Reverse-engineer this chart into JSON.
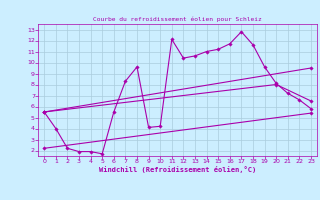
{
  "title": "Courbe du refroidissement éolien pour Schleiz",
  "xlabel": "Windchill (Refroidissement éolien,°C)",
  "bg_color": "#cceeff",
  "grid_color": "#aaccdd",
  "line_color": "#aa00aa",
  "xlim": [
    -0.5,
    23.5
  ],
  "ylim": [
    1.5,
    13.5
  ],
  "xticks": [
    0,
    1,
    2,
    3,
    4,
    5,
    6,
    7,
    8,
    9,
    10,
    11,
    12,
    13,
    14,
    15,
    16,
    17,
    18,
    19,
    20,
    21,
    22,
    23
  ],
  "yticks": [
    2,
    3,
    4,
    5,
    6,
    7,
    8,
    9,
    10,
    11,
    12,
    13
  ],
  "line1_x": [
    0,
    1,
    2,
    3,
    4,
    5,
    6,
    7,
    8,
    9,
    10,
    11,
    12,
    13,
    14,
    15,
    16,
    17,
    18,
    19,
    20,
    21,
    22,
    23
  ],
  "line1_y": [
    5.5,
    4.0,
    2.2,
    1.9,
    1.9,
    1.7,
    5.5,
    8.3,
    9.6,
    4.1,
    4.2,
    12.1,
    10.4,
    10.6,
    11.0,
    11.2,
    11.7,
    12.8,
    11.6,
    9.6,
    8.1,
    7.2,
    6.6,
    5.8
  ],
  "line2_x": [
    0,
    23
  ],
  "line2_y": [
    2.2,
    5.4
  ],
  "line3_x": [
    0,
    23
  ],
  "line3_y": [
    5.5,
    9.5
  ],
  "line4_x": [
    0,
    20,
    23
  ],
  "line4_y": [
    5.5,
    8.0,
    6.5
  ]
}
